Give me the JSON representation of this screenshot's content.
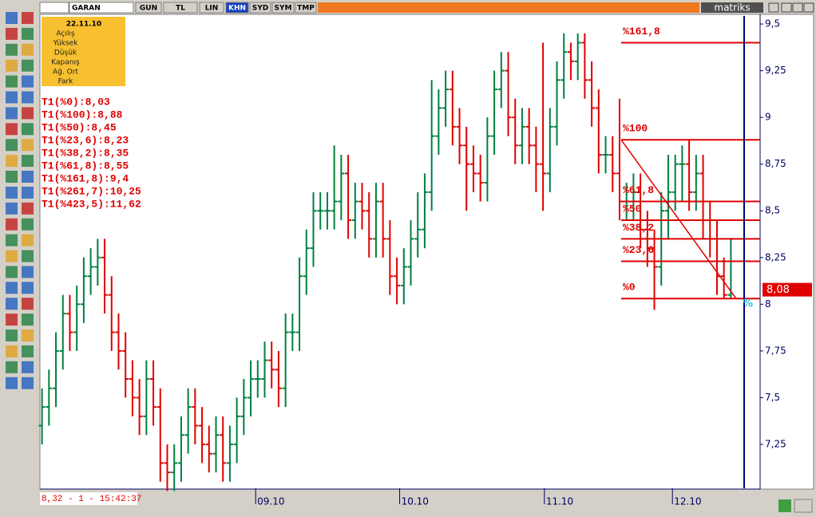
{
  "toolbar": {
    "symbol": "GARAN",
    "buttons": [
      "GUN",
      "TL",
      "LIN",
      "KHN",
      "SYD",
      "SYM",
      "TMP"
    ],
    "active": "KHN",
    "logo": "matriks"
  },
  "info_panel": {
    "date": "22.11.10",
    "fields": [
      "Açılış",
      "Yüksek",
      "Düşük",
      "Kapanış",
      "Ağ. Ort",
      "Fark"
    ]
  },
  "fib_list": [
    "T1(%0):8,03",
    "T1(%100):8,88",
    "T1(%50):8,45",
    "T1(%23,6):8,23",
    "T1(%38,2):8,35",
    "T1(%61,8):8,55",
    "T1(%161,8):9,4",
    "T1(%261,7):10,25",
    "T1(%423,5):11,62"
  ],
  "status": "8,32 - 1 - 15:42:37",
  "chart_data": {
    "type": "ohlc",
    "up_color": "#008040",
    "down_color": "#e00000",
    "open": [
      7.35,
      7.45,
      7.55,
      7.75,
      7.95,
      7.85,
      8.0,
      8.15,
      8.2,
      8.25,
      8.05,
      7.85,
      7.75,
      7.6,
      7.5,
      7.4,
      7.6,
      7.45,
      7.15,
      7.1,
      7.15,
      7.3,
      7.45,
      7.35,
      7.25,
      7.2,
      7.3,
      7.15,
      7.25,
      7.4,
      7.5,
      7.6,
      7.6,
      7.7,
      7.65,
      7.55,
      7.85,
      7.85,
      8.15,
      8.3,
      8.5,
      8.5,
      8.5,
      8.55,
      8.7,
      8.45,
      8.55,
      8.5,
      8.35,
      8.55,
      8.35,
      8.15,
      8.1,
      8.2,
      8.35,
      8.4,
      8.6,
      8.9,
      9.05,
      9.15,
      8.95,
      8.85,
      8.75,
      8.7,
      8.65,
      8.9,
      9.15,
      9.25,
      9.0,
      8.85,
      8.95,
      8.85,
      8.75,
      8.7,
      8.95,
      9.2,
      9.35,
      9.3,
      9.4,
      9.2,
      9.05,
      8.8,
      8.8,
      8.7,
      8.55,
      8.55,
      8.6,
      8.4,
      8.3,
      8.2,
      8.5,
      8.6,
      8.75,
      8.75,
      8.6,
      8.7,
      8.45,
      8.35,
      8.15,
      8.05
    ],
    "high": [
      7.55,
      7.65,
      7.85,
      8.05,
      8.05,
      8.1,
      8.25,
      8.3,
      8.35,
      8.35,
      8.15,
      7.95,
      7.85,
      7.7,
      7.6,
      7.7,
      7.7,
      7.55,
      7.25,
      7.25,
      7.4,
      7.55,
      7.55,
      7.45,
      7.35,
      7.4,
      7.4,
      7.35,
      7.5,
      7.6,
      7.7,
      7.7,
      7.8,
      7.8,
      7.75,
      7.95,
      7.95,
      8.25,
      8.4,
      8.6,
      8.6,
      8.6,
      8.85,
      8.8,
      8.8,
      8.65,
      8.65,
      8.6,
      8.65,
      8.65,
      8.45,
      8.25,
      8.3,
      8.45,
      8.6,
      8.7,
      9.2,
      9.15,
      9.25,
      9.25,
      9.05,
      8.95,
      8.85,
      8.8,
      9.0,
      9.25,
      9.35,
      9.35,
      9.1,
      9.05,
      9.05,
      8.95,
      9.4,
      9.05,
      9.3,
      9.45,
      9.4,
      9.45,
      9.45,
      9.3,
      9.15,
      8.9,
      8.9,
      9.1,
      8.65,
      8.7,
      8.7,
      8.5,
      8.4,
      8.6,
      8.8,
      8.8,
      8.85,
      8.88,
      8.8,
      8.8,
      8.55,
      8.45,
      8.25,
      8.35
    ],
    "low": [
      7.25,
      7.35,
      7.45,
      7.65,
      7.75,
      7.75,
      7.9,
      8.05,
      8.1,
      7.95,
      7.75,
      7.65,
      7.5,
      7.4,
      7.3,
      7.3,
      7.35,
      7.05,
      7.0,
      7.0,
      7.05,
      7.2,
      7.25,
      7.15,
      7.1,
      7.1,
      7.05,
      7.05,
      7.15,
      7.3,
      7.4,
      7.5,
      7.5,
      7.55,
      7.45,
      7.45,
      7.75,
      7.75,
      8.05,
      8.2,
      8.4,
      8.4,
      8.4,
      8.45,
      8.35,
      8.35,
      8.4,
      8.25,
      8.25,
      8.25,
      8.05,
      8.0,
      8.0,
      8.1,
      8.25,
      8.3,
      8.5,
      8.8,
      8.95,
      8.85,
      8.75,
      8.5,
      8.6,
      8.55,
      8.55,
      8.8,
      9.05,
      8.9,
      8.75,
      8.75,
      8.75,
      8.6,
      8.5,
      8.6,
      8.85,
      9.1,
      9.2,
      9.2,
      9.1,
      8.95,
      8.7,
      8.7,
      8.6,
      8.45,
      8.45,
      8.45,
      8.3,
      8.2,
      7.97,
      8.1,
      8.35,
      8.5,
      8.55,
      8.5,
      8.5,
      8.35,
      8.25,
      8.05,
      8.03,
      8.03
    ],
    "close": [
      7.45,
      7.55,
      7.75,
      7.95,
      7.85,
      8.0,
      8.15,
      8.2,
      8.25,
      8.05,
      7.85,
      7.75,
      7.6,
      7.5,
      7.4,
      7.6,
      7.45,
      7.15,
      7.1,
      7.15,
      7.3,
      7.45,
      7.35,
      7.25,
      7.2,
      7.3,
      7.15,
      7.25,
      7.4,
      7.5,
      7.6,
      7.6,
      7.7,
      7.65,
      7.55,
      7.85,
      7.85,
      8.15,
      8.3,
      8.5,
      8.5,
      8.5,
      8.55,
      8.7,
      8.45,
      8.55,
      8.5,
      8.35,
      8.55,
      8.35,
      8.15,
      8.1,
      8.2,
      8.35,
      8.4,
      8.6,
      8.9,
      9.05,
      9.15,
      8.95,
      8.85,
      8.75,
      8.7,
      8.65,
      8.9,
      9.15,
      9.25,
      9.0,
      8.85,
      8.95,
      8.85,
      8.75,
      8.7,
      8.95,
      9.2,
      9.35,
      9.3,
      9.4,
      9.2,
      9.05,
      8.8,
      8.8,
      8.7,
      8.55,
      8.55,
      8.6,
      8.4,
      8.3,
      8.2,
      8.5,
      8.6,
      8.75,
      8.75,
      8.6,
      8.7,
      8.45,
      8.35,
      8.15,
      8.05,
      8.35
    ],
    "xlim": [
      -0.3,
      103.2
    ],
    "xticks": [
      {
        "value": 30.7,
        "label": "09.10"
      },
      {
        "value": 51.4,
        "label": "10.10"
      },
      {
        "value": 72.2,
        "label": "11.10"
      },
      {
        "value": 90.6,
        "label": "12.10"
      }
    ],
    "ylim": [
      7.015,
      9.543
    ],
    "yticks": [
      {
        "value": 9.5,
        "label": "9,5"
      },
      {
        "value": 9.25,
        "label": "9,25"
      },
      9,
      {
        "value": 8.75,
        "label": "8,75"
      },
      {
        "value": 8.5,
        "label": "8,5"
      },
      {
        "value": 8.25,
        "label": "8,25"
      },
      8,
      {
        "value": 7.75,
        "label": "7,75"
      },
      {
        "value": 7.5,
        "label": "7,5"
      },
      {
        "value": 7.25,
        "label": "7,25"
      }
    ],
    "fib_color": "#e00000",
    "fib_levels": [
      {
        "label": "%161,8",
        "value": 9.4
      },
      {
        "label": "%100",
        "value": 8.88
      },
      {
        "label": "%61,8",
        "value": 8.55
      },
      {
        "label": "%50",
        "value": 8.45
      },
      {
        "label": "%38,2",
        "value": 8.35
      },
      {
        "label": "%23,6",
        "value": 8.23
      },
      {
        "label": "%0",
        "value": 8.03
      }
    ],
    "last_price": {
      "value": 8.08,
      "label": "8,08"
    },
    "cursor_label": "%"
  }
}
